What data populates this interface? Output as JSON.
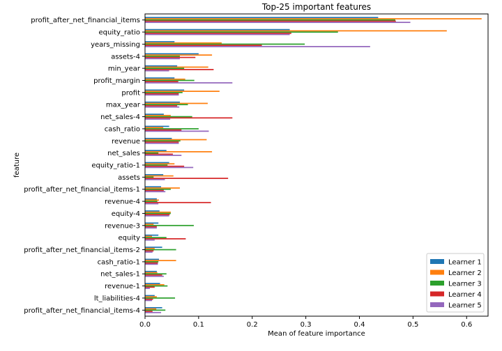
{
  "chart_data": {
    "type": "bar",
    "orientation": "horizontal",
    "title": "Top-25 important features",
    "xlabel": "Mean of feature importance",
    "ylabel": "feature",
    "xlim": [
      0,
      0.64
    ],
    "xticks": [
      "0.0",
      "0.1",
      "0.2",
      "0.3",
      "0.4",
      "0.5",
      "0.6"
    ],
    "grid": false,
    "legend_position": "lower-right",
    "categories": [
      "profit_after_net_financial_items",
      "equity_ratio",
      "years_missing",
      "assets-4",
      "min_year",
      "profit_margin",
      "profit",
      "max_year",
      "net_sales-4",
      "cash_ratio",
      "revenue",
      "net_sales",
      "equity_ratio-1",
      "assets",
      "profit_after_net_financial_items-1",
      "revenue-4",
      "equity-4",
      "revenue-3",
      "equity",
      "profit_after_net_financial_items-2",
      "cash_ratio-1",
      "net_sales-1",
      "revenue-1",
      "lt_liabilities-4",
      "profit_after_net_financial_items-4"
    ],
    "series": [
      {
        "name": "Learner 1",
        "color": "#1f77b4",
        "values": [
          0.435,
          0.27,
          0.055,
          0.1,
          0.06,
          0.055,
          0.073,
          0.065,
          0.035,
          0.045,
          0.05,
          0.04,
          0.045,
          0.034,
          0.03,
          0.022,
          0.027,
          0.025,
          0.025,
          0.032,
          0.026,
          0.022,
          0.028,
          0.018,
          0.032
        ]
      },
      {
        "name": "Learner 2",
        "color": "#ff7f0e",
        "values": [
          0.628,
          0.563,
          0.143,
          0.125,
          0.118,
          0.075,
          0.139,
          0.117,
          0.048,
          0.034,
          0.115,
          0.125,
          0.055,
          0.053,
          0.065,
          0.026,
          0.048,
          0.016,
          0.013,
          0.018,
          0.058,
          0.023,
          0.036,
          0.022,
          0.021
        ]
      },
      {
        "name": "Learner 3",
        "color": "#2ca02c",
        "values": [
          0.467,
          0.36,
          0.298,
          0.065,
          0.073,
          0.092,
          0.07,
          0.08,
          0.088,
          0.1,
          0.066,
          0.025,
          0.042,
          0.016,
          0.048,
          0.023,
          0.048,
          0.091,
          0.04,
          0.058,
          0.025,
          0.04,
          0.042,
          0.056,
          0.038
        ]
      },
      {
        "name": "Learner 4",
        "color": "#d62728",
        "values": [
          0.468,
          0.273,
          0.218,
          0.094,
          0.128,
          0.062,
          0.063,
          0.06,
          0.163,
          0.068,
          0.063,
          0.052,
          0.073,
          0.155,
          0.035,
          0.123,
          0.046,
          0.022,
          0.076,
          0.016,
          0.024,
          0.032,
          0.018,
          0.015,
          0.014
        ]
      },
      {
        "name": "Learner 5",
        "color": "#9467bd",
        "values": [
          0.495,
          0.27,
          0.42,
          0.065,
          0.045,
          0.163,
          0.063,
          0.064,
          0.047,
          0.119,
          0.063,
          0.068,
          0.09,
          0.037,
          0.038,
          0.025,
          0.045,
          0.022,
          0.018,
          0.014,
          0.024,
          0.035,
          0.009,
          0.013,
          0.03
        ]
      }
    ]
  }
}
